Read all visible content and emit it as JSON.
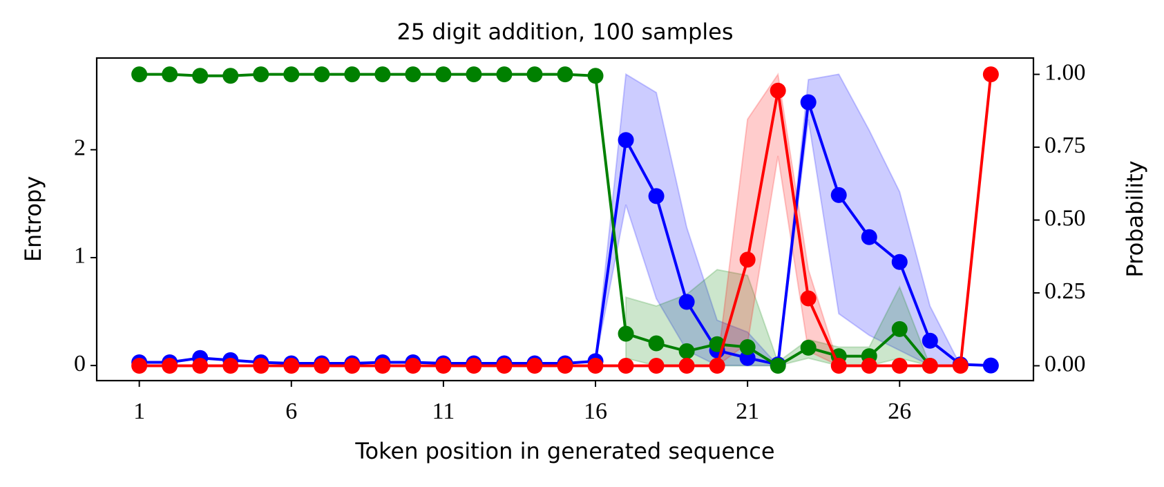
{
  "chart_data": {
    "type": "line",
    "title": "25 digit addition, 100 samples",
    "xlabel": "Token position in generated sequence",
    "ylabel": "Entropy",
    "y2label": "Probability",
    "x": [
      1,
      2,
      3,
      4,
      5,
      6,
      7,
      8,
      9,
      10,
      11,
      12,
      13,
      14,
      15,
      16,
      17,
      18,
      19,
      20,
      21,
      22,
      23,
      24,
      25,
      26,
      27,
      28,
      29
    ],
    "xlim": [
      -0.4,
      30.4
    ],
    "xticks": [
      1,
      6,
      11,
      16,
      21,
      26
    ],
    "ylim": [
      -0.14,
      2.85
    ],
    "yticks": [
      0,
      1,
      2
    ],
    "y2lim": [
      -0.051,
      1.056
    ],
    "y2ticks": [
      {
        "value": 0,
        "label": "0.00"
      },
      {
        "value": 0.25,
        "label": "0.25"
      },
      {
        "value": 0.5,
        "label": "0.50"
      },
      {
        "value": 0.75,
        "label": "0.75"
      },
      {
        "value": 1,
        "label": "1.00"
      }
    ],
    "series": [
      {
        "color": "#0000ff",
        "axis": "y",
        "values": [
          0.03,
          0.03,
          0.07,
          0.05,
          0.03,
          0.02,
          0.02,
          0.02,
          0.03,
          0.03,
          0.02,
          0.02,
          0.02,
          0.02,
          0.02,
          0.04,
          2.09,
          1.57,
          0.59,
          0.14,
          0.07,
          0.01,
          2.44,
          1.58,
          1.19,
          0.96,
          0.23,
          0.01,
          0.0
        ],
        "upper": [
          null,
          null,
          null,
          null,
          null,
          null,
          null,
          null,
          null,
          null,
          null,
          null,
          null,
          null,
          null,
          0.04,
          2.7,
          2.53,
          1.28,
          0.42,
          0.31,
          0.0,
          2.65,
          2.7,
          2.18,
          1.61,
          0.55,
          0.0,
          null
        ],
        "lower": [
          null,
          null,
          null,
          null,
          null,
          null,
          null,
          null,
          null,
          null,
          null,
          null,
          null,
          null,
          null,
          0.04,
          1.49,
          0.62,
          0.14,
          0.0,
          0.0,
          0.0,
          2.28,
          0.48,
          0.28,
          0.14,
          0.0,
          0.0,
          null
        ]
      },
      {
        "color": "#008000",
        "axis": "y2",
        "values": [
          1.0,
          1.0,
          0.995,
          0.995,
          1.0,
          1.0,
          1.0,
          1.0,
          1.0,
          1.0,
          1.0,
          1.0,
          1.0,
          1.0,
          1.0,
          0.995,
          0.11,
          0.077,
          0.05,
          0.074,
          0.064,
          0.0,
          0.062,
          0.033,
          0.033,
          0.126,
          0.0,
          null,
          null
        ],
        "upper": [
          null,
          null,
          null,
          null,
          null,
          null,
          null,
          null,
          null,
          null,
          null,
          null,
          null,
          null,
          null,
          null,
          0.235,
          0.205,
          0.245,
          0.33,
          0.31,
          0.013,
          0.09,
          0.064,
          0.064,
          0.27,
          0.0,
          null,
          null
        ],
        "lower": [
          null,
          null,
          null,
          null,
          null,
          null,
          null,
          null,
          null,
          null,
          null,
          null,
          null,
          null,
          null,
          null,
          0.026,
          0.0,
          0.0,
          0.0,
          0.0,
          0.0,
          0.026,
          0.0,
          0.0,
          0.026,
          0.0,
          null,
          null
        ]
      },
      {
        "color": "#ff0000",
        "axis": "y2",
        "values": [
          0,
          0,
          0,
          0,
          0,
          0,
          0,
          0,
          0,
          0,
          0,
          0,
          0,
          0,
          0,
          0,
          0,
          0,
          0,
          0,
          0.364,
          0.944,
          0.231,
          0,
          0,
          0,
          0,
          0,
          1.0
        ],
        "upper": [
          null,
          null,
          null,
          null,
          null,
          null,
          null,
          null,
          null,
          null,
          null,
          null,
          null,
          null,
          null,
          null,
          null,
          null,
          null,
          0.0,
          0.846,
          1.0,
          0.33,
          0.0,
          null,
          null,
          null,
          null,
          null
        ],
        "lower": [
          null,
          null,
          null,
          null,
          null,
          null,
          null,
          null,
          null,
          null,
          null,
          null,
          null,
          null,
          null,
          null,
          null,
          null,
          null,
          0.0,
          0.077,
          0.72,
          0.05,
          0.0,
          null,
          null,
          null,
          null,
          null
        ]
      }
    ]
  }
}
